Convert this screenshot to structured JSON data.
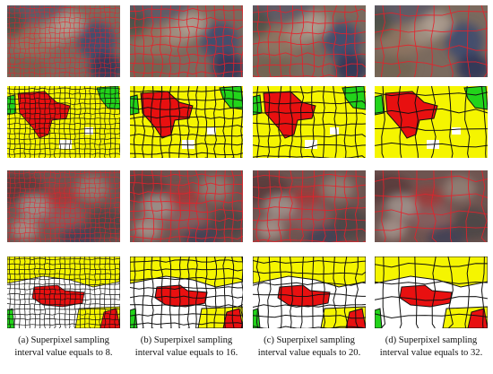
{
  "colors": {
    "superpixel_boundary": "#e8202a",
    "segment_boundary": "#111111",
    "class_yellow": "#f5f500",
    "class_red": "#e81010",
    "class_green": "#22d41a",
    "class_white": "#ffffff"
  },
  "captions": [
    {
      "line1": "(a) Superpixel sampling",
      "line2": "interval value equals to 8."
    },
    {
      "line1": "(b) Superpixel sampling",
      "line2": "interval value equals to 16."
    },
    {
      "line1": "(c) Superpixel sampling",
      "line2": "interval value equals to 20."
    },
    {
      "line1": "(d) Superpixel sampling",
      "line2": "interval value equals to 32."
    }
  ],
  "sampling_intervals": [
    8,
    16,
    20,
    32
  ]
}
